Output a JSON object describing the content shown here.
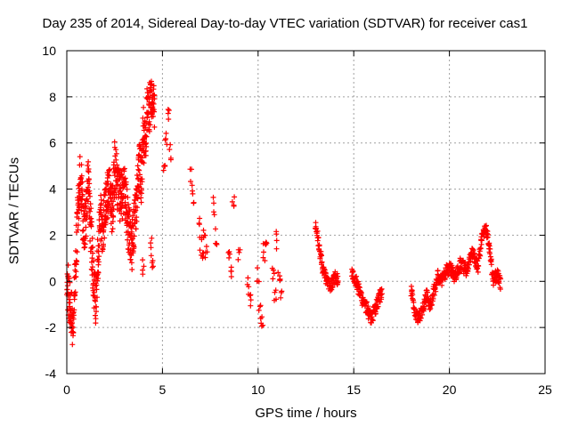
{
  "chart_data": {
    "type": "scatter",
    "title": "Day 235 of 2014, Sidereal Day-to-day VTEC variation (SDTVAR) for receiver cas1",
    "xlabel": "GPS time / hours",
    "ylabel": "SDTVAR / TECUs",
    "xlim": [
      0,
      25
    ],
    "ylim": [
      -4,
      10
    ],
    "xticks": [
      0,
      5,
      10,
      15,
      20,
      25
    ],
    "yticks": [
      -4,
      -2,
      0,
      2,
      4,
      6,
      8,
      10
    ],
    "grid": true,
    "marker": "+",
    "color": "#ff0000",
    "series": [
      {
        "name": "cas1",
        "anchors": [
          [
            0.0,
            0.2
          ],
          [
            0.15,
            -0.8
          ],
          [
            0.3,
            -2.0
          ],
          [
            0.4,
            -0.5
          ],
          [
            0.5,
            1.5
          ],
          [
            0.6,
            3.5
          ],
          [
            0.7,
            4.8
          ],
          [
            0.8,
            3.5
          ],
          [
            0.9,
            2.0
          ],
          [
            1.0,
            3.0
          ],
          [
            1.1,
            4.5
          ],
          [
            1.2,
            3.0
          ],
          [
            1.3,
            1.5
          ],
          [
            1.4,
            0.0
          ],
          [
            1.5,
            -0.8
          ],
          [
            1.6,
            0.5
          ],
          [
            1.7,
            2.0
          ],
          [
            1.8,
            3.0
          ],
          [
            1.9,
            2.0
          ],
          [
            2.0,
            3.5
          ],
          [
            2.2,
            4.0
          ],
          [
            2.4,
            3.0
          ],
          [
            2.5,
            5.0
          ],
          [
            2.6,
            4.5
          ],
          [
            2.8,
            3.5
          ],
          [
            3.0,
            4.0
          ],
          [
            3.2,
            2.5
          ],
          [
            3.4,
            1.5
          ],
          [
            3.6,
            3.0
          ],
          [
            3.8,
            5.0
          ],
          [
            3.9,
            4.5
          ],
          [
            4.0,
            6.5
          ],
          [
            4.1,
            5.8
          ],
          [
            4.2,
            7.5
          ],
          [
            4.3,
            7.0
          ],
          [
            4.4,
            8.3
          ],
          [
            4.6,
            7.5
          ]
        ],
        "scattered_segments": [
          [
            4.0,
            0.6
          ],
          [
            4.4,
            1.5
          ],
          [
            4.5,
            0.6
          ],
          [
            5.2,
            6.0
          ],
          [
            5.3,
            7.3
          ],
          [
            5.4,
            5.5
          ],
          [
            5.1,
            5.0
          ],
          [
            6.5,
            4.5
          ],
          [
            6.6,
            3.6
          ],
          [
            6.9,
            2.3
          ],
          [
            7.0,
            1.5
          ],
          [
            7.1,
            0.8
          ],
          [
            7.2,
            2.0
          ],
          [
            7.3,
            1.2
          ],
          [
            7.7,
            3.3
          ],
          [
            7.8,
            2.0
          ],
          [
            8.5,
            1.0
          ],
          [
            8.6,
            0.4
          ],
          [
            8.7,
            3.5
          ],
          [
            9.0,
            1.0
          ],
          [
            9.5,
            -0.2
          ],
          [
            9.6,
            -0.8
          ],
          [
            10.0,
            0.3
          ],
          [
            10.1,
            -1.2
          ],
          [
            10.2,
            -1.8
          ],
          [
            10.3,
            1.2
          ],
          [
            10.4,
            1.7
          ],
          [
            10.8,
            0.5
          ],
          [
            10.9,
            -0.5
          ],
          [
            11.0,
            1.8
          ],
          [
            11.1,
            0.0
          ],
          [
            11.2,
            -0.4
          ]
        ],
        "segments": [
          [
            [
              13.0,
              2.5
            ],
            [
              13.2,
              1.5
            ],
            [
              13.4,
              0.5
            ],
            [
              13.6,
              0.0
            ],
            [
              13.8,
              -0.2
            ],
            [
              14.0,
              0.2
            ],
            [
              14.2,
              0.0
            ]
          ],
          [
            [
              14.9,
              0.4
            ],
            [
              15.2,
              -0.2
            ],
            [
              15.5,
              -0.9
            ],
            [
              15.7,
              -1.2
            ],
            [
              15.9,
              -1.6
            ],
            [
              16.1,
              -1.3
            ],
            [
              16.3,
              -0.8
            ],
            [
              16.5,
              -0.4
            ]
          ],
          [
            [
              18.0,
              -0.4
            ],
            [
              18.2,
              -1.3
            ],
            [
              18.4,
              -1.6
            ],
            [
              18.6,
              -1.2
            ],
            [
              18.8,
              -0.6
            ],
            [
              19.0,
              -1.0
            ],
            [
              19.2,
              -0.4
            ],
            [
              19.4,
              0.2
            ],
            [
              19.6,
              0.0
            ],
            [
              19.8,
              0.4
            ],
            [
              20.0,
              0.6
            ],
            [
              20.3,
              0.2
            ],
            [
              20.6,
              0.8
            ],
            [
              20.9,
              0.4
            ],
            [
              21.2,
              1.3
            ],
            [
              21.5,
              0.6
            ],
            [
              21.7,
              2.0
            ],
            [
              21.9,
              2.3
            ],
            [
              22.1,
              1.5
            ],
            [
              22.3,
              0.0
            ],
            [
              22.5,
              0.3
            ],
            [
              22.7,
              -0.2
            ]
          ]
        ]
      }
    ]
  }
}
